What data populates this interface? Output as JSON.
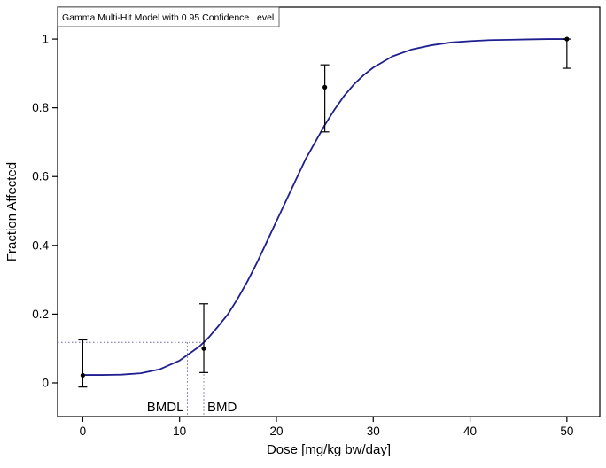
{
  "chart_data": {
    "type": "line",
    "title": "Gamma Multi-Hit Model with 0.95 Confidence Level",
    "xlabel": "Dose [mg/kg bw/day]",
    "ylabel": "Fraction Affected",
    "xlim": [
      -2.6,
      53.4
    ],
    "ylim": [
      -0.098,
      1.093
    ],
    "x_ticks": [
      0,
      10,
      20,
      30,
      40,
      50
    ],
    "y_ticks": [
      0,
      0.2,
      0.4,
      0.6,
      0.8,
      1
    ],
    "grid": "off",
    "curve": {
      "name": "gamma-multi-hit-fit",
      "color": "#1f1f8f",
      "x": [
        0,
        2,
        4,
        6,
        8,
        10,
        11,
        12,
        12.5,
        13,
        14,
        15,
        16,
        17,
        18,
        19,
        20,
        21,
        22,
        23,
        24,
        25,
        26,
        27,
        28,
        29,
        30,
        32,
        34,
        36,
        38,
        40,
        42,
        44,
        46,
        48,
        50
      ],
      "y": [
        0.023,
        0.023,
        0.024,
        0.028,
        0.04,
        0.065,
        0.085,
        0.105,
        0.118,
        0.132,
        0.165,
        0.2,
        0.245,
        0.295,
        0.35,
        0.41,
        0.47,
        0.53,
        0.59,
        0.65,
        0.7,
        0.75,
        0.795,
        0.835,
        0.868,
        0.895,
        0.917,
        0.95,
        0.97,
        0.982,
        0.99,
        0.994,
        0.997,
        0.998,
        0.999,
        1.0,
        1.0
      ]
    },
    "points": {
      "color": "#000000",
      "items": [
        {
          "x": 0,
          "y": 0.022,
          "lo": -0.012,
          "hi": 0.125
        },
        {
          "x": 12.5,
          "y": 0.1,
          "lo": 0.03,
          "hi": 0.23
        },
        {
          "x": 25,
          "y": 0.86,
          "lo": 0.73,
          "hi": 0.925
        },
        {
          "x": 50,
          "y": 1.0,
          "lo": 0.915,
          "hi": 1.0
        }
      ]
    },
    "bmd": {
      "label": "BMD",
      "value": 12.5
    },
    "bmdl": {
      "label": "BMDL",
      "value": 10.8
    },
    "bmr_fraction": 0.118,
    "guide_color": "#6666aa",
    "frame_color": "#000000"
  }
}
